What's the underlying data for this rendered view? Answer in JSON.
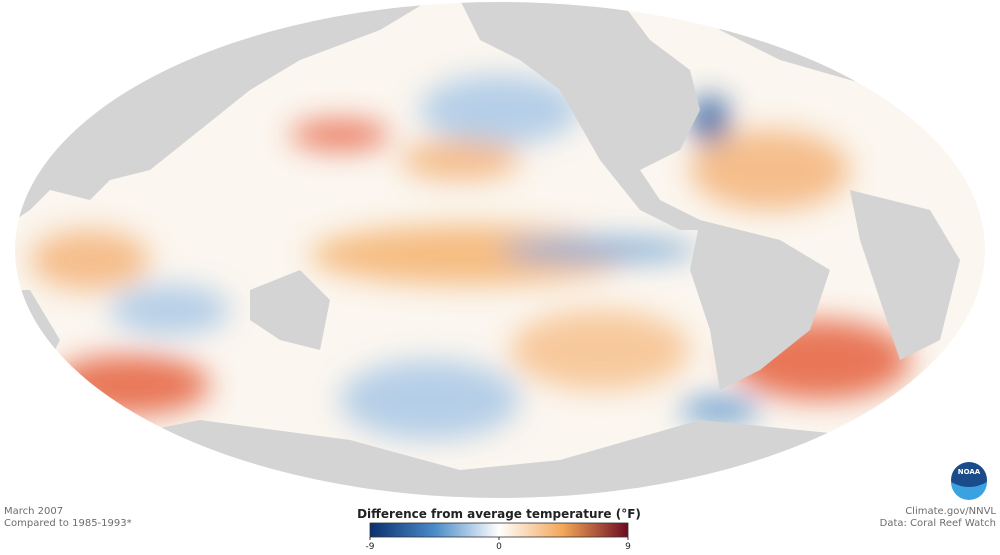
{
  "header": {
    "date": "March 2007",
    "baseline": "Compared to 1985-1993*"
  },
  "legend": {
    "title": "Difference from average temperature (°F)",
    "lim": [
      -9,
      9
    ],
    "ticks": [
      -9,
      0,
      9
    ],
    "colors": [
      "#0b2f6e",
      "#4a8bc8",
      "#ffffff",
      "#f2a657",
      "#6c0a22"
    ]
  },
  "credits": {
    "source": "Climate.gov/NNVL",
    "data": "Data: Coral Reef Watch",
    "logo": "NOAA"
  }
}
